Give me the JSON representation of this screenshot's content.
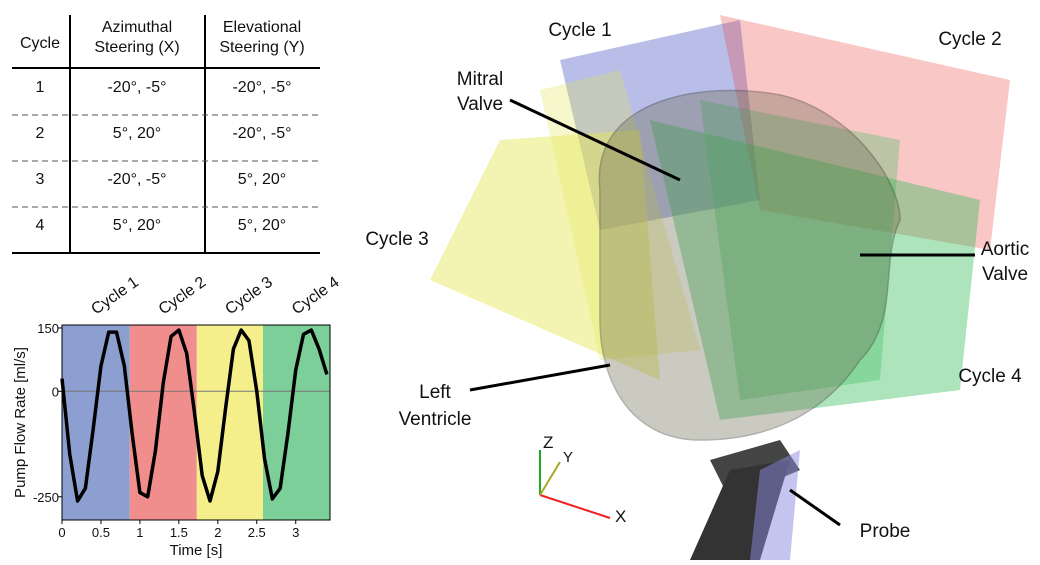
{
  "table": {
    "header": [
      [
        "Cycle"
      ],
      [
        "Azimuthal",
        "Steering (X)"
      ],
      [
        "Elevational",
        "Steering (Y)"
      ]
    ],
    "rows": [
      [
        "1",
        "-20°, -5°",
        "-20°, -5°"
      ],
      [
        "2",
        "5°, 20°",
        "-20°, -5°"
      ],
      [
        "3",
        "-20°, -5°",
        "5°, 20°"
      ],
      [
        "4",
        "5°, 20°",
        "5°, 20°"
      ]
    ]
  },
  "chart_data": {
    "type": "line",
    "xlabel": "Time [s]",
    "ylabel": "Pump Flow Rate [ml/s]",
    "xlim": [
      0,
      3.44
    ],
    "ylim": [
      -305,
      157
    ],
    "xticks": [
      0,
      0.5,
      1,
      1.5,
      2,
      2.5,
      3
    ],
    "yticks": [
      -250,
      0,
      150
    ],
    "bands": [
      {
        "name": "Cycle 1",
        "color": "#8d9fd1",
        "range": [
          0,
          0.87
        ]
      },
      {
        "name": "Cycle 2",
        "color": "#f08d8d",
        "range": [
          0.87,
          1.73
        ]
      },
      {
        "name": "Cycle 3",
        "color": "#f4ef8a",
        "range": [
          1.73,
          2.58
        ]
      },
      {
        "name": "Cycle 4",
        "color": "#7dcf9a",
        "range": [
          2.58,
          3.44
        ]
      }
    ],
    "x": [
      0,
      0.1,
      0.2,
      0.3,
      0.4,
      0.5,
      0.6,
      0.7,
      0.8,
      0.9,
      1.0,
      1.1,
      1.2,
      1.3,
      1.4,
      1.5,
      1.6,
      1.7,
      1.8,
      1.9,
      2.0,
      2.1,
      2.2,
      2.3,
      2.4,
      2.5,
      2.6,
      2.7,
      2.8,
      2.9,
      3.0,
      3.1,
      3.2,
      3.3,
      3.4
    ],
    "series": [
      {
        "color": "#000000",
        "values": [
          30,
          -150,
          -260,
          -230,
          -90,
          60,
          140,
          140,
          60,
          -100,
          -240,
          -250,
          -140,
          20,
          130,
          145,
          90,
          -50,
          -200,
          -260,
          -190,
          -40,
          100,
          145,
          120,
          0,
          -160,
          -255,
          -230,
          -100,
          50,
          135,
          145,
          100,
          40
        ]
      }
    ]
  },
  "figure": {
    "cycles": [
      "Cycle 1",
      "Cycle 2",
      "Cycle 3",
      "Cycle 4"
    ],
    "mitral": [
      "Mitral",
      "Valve"
    ],
    "aortic": [
      "Aortic",
      "Valve"
    ],
    "ventricle": [
      "Left",
      "Ventricle"
    ],
    "probe": "Probe",
    "axes": [
      "X",
      "Y",
      "Z"
    ]
  }
}
